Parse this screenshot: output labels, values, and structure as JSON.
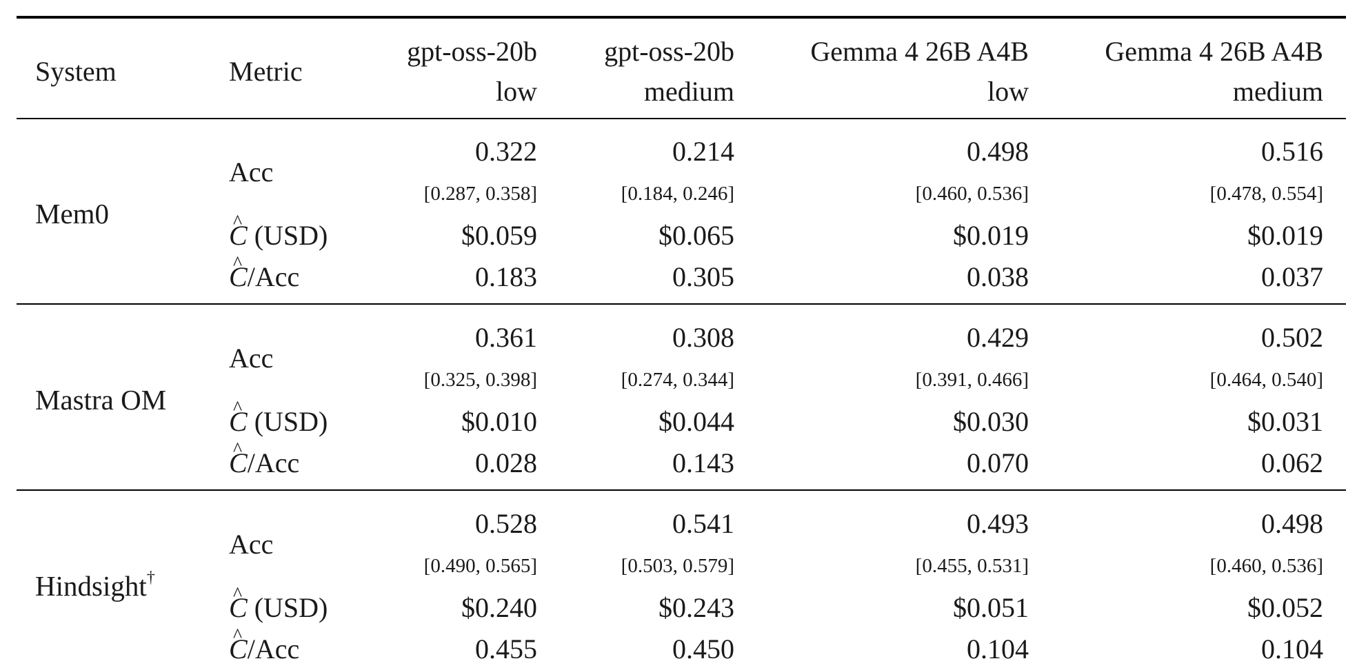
{
  "header": {
    "system": "System",
    "metric": "Metric",
    "columns": [
      {
        "line1": "gpt-oss-20b",
        "line2": "low"
      },
      {
        "line1": "gpt-oss-20b",
        "line2": "medium"
      },
      {
        "line1": "Gemma 4 26B A4B",
        "line2": "low"
      },
      {
        "line1": "Gemma 4 26B A4B",
        "line2": "medium"
      }
    ]
  },
  "metric_labels": {
    "acc": "Acc",
    "cost_symbol": "C",
    "cost_unit": "(USD)",
    "ratio_sep": "/",
    "ratio_suffix": "Acc"
  },
  "groups": [
    {
      "system": "Mem0",
      "acc": [
        "0.322",
        "0.214",
        "0.498",
        "0.516"
      ],
      "ci": [
        "[0.287, 0.358]",
        "[0.184, 0.246]",
        "[0.460, 0.536]",
        "[0.478, 0.554]"
      ],
      "cost": [
        "$0.059",
        "$0.065",
        "$0.019",
        "$0.019"
      ],
      "ratio": [
        "0.183",
        "0.305",
        "0.038",
        "0.037"
      ]
    },
    {
      "system": "Mastra OM",
      "acc": [
        "0.361",
        "0.308",
        "0.429",
        "0.502"
      ],
      "ci": [
        "[0.325, 0.398]",
        "[0.274, 0.344]",
        "[0.391, 0.466]",
        "[0.464, 0.540]"
      ],
      "cost": [
        "$0.010",
        "$0.044",
        "$0.030",
        "$0.031"
      ],
      "ratio": [
        "0.028",
        "0.143",
        "0.070",
        "0.062"
      ]
    },
    {
      "system": "Hindsight",
      "system_mark": "†",
      "acc": [
        "0.528",
        "0.541",
        "0.493",
        "0.498"
      ],
      "ci": [
        "[0.490, 0.565]",
        "[0.503, 0.579]",
        "[0.455, 0.531]",
        "[0.460, 0.536]"
      ],
      "cost": [
        "$0.240",
        "$0.243",
        "$0.051",
        "$0.052"
      ],
      "ratio": [
        "0.455",
        "0.450",
        "0.104",
        "0.104"
      ]
    }
  ]
}
